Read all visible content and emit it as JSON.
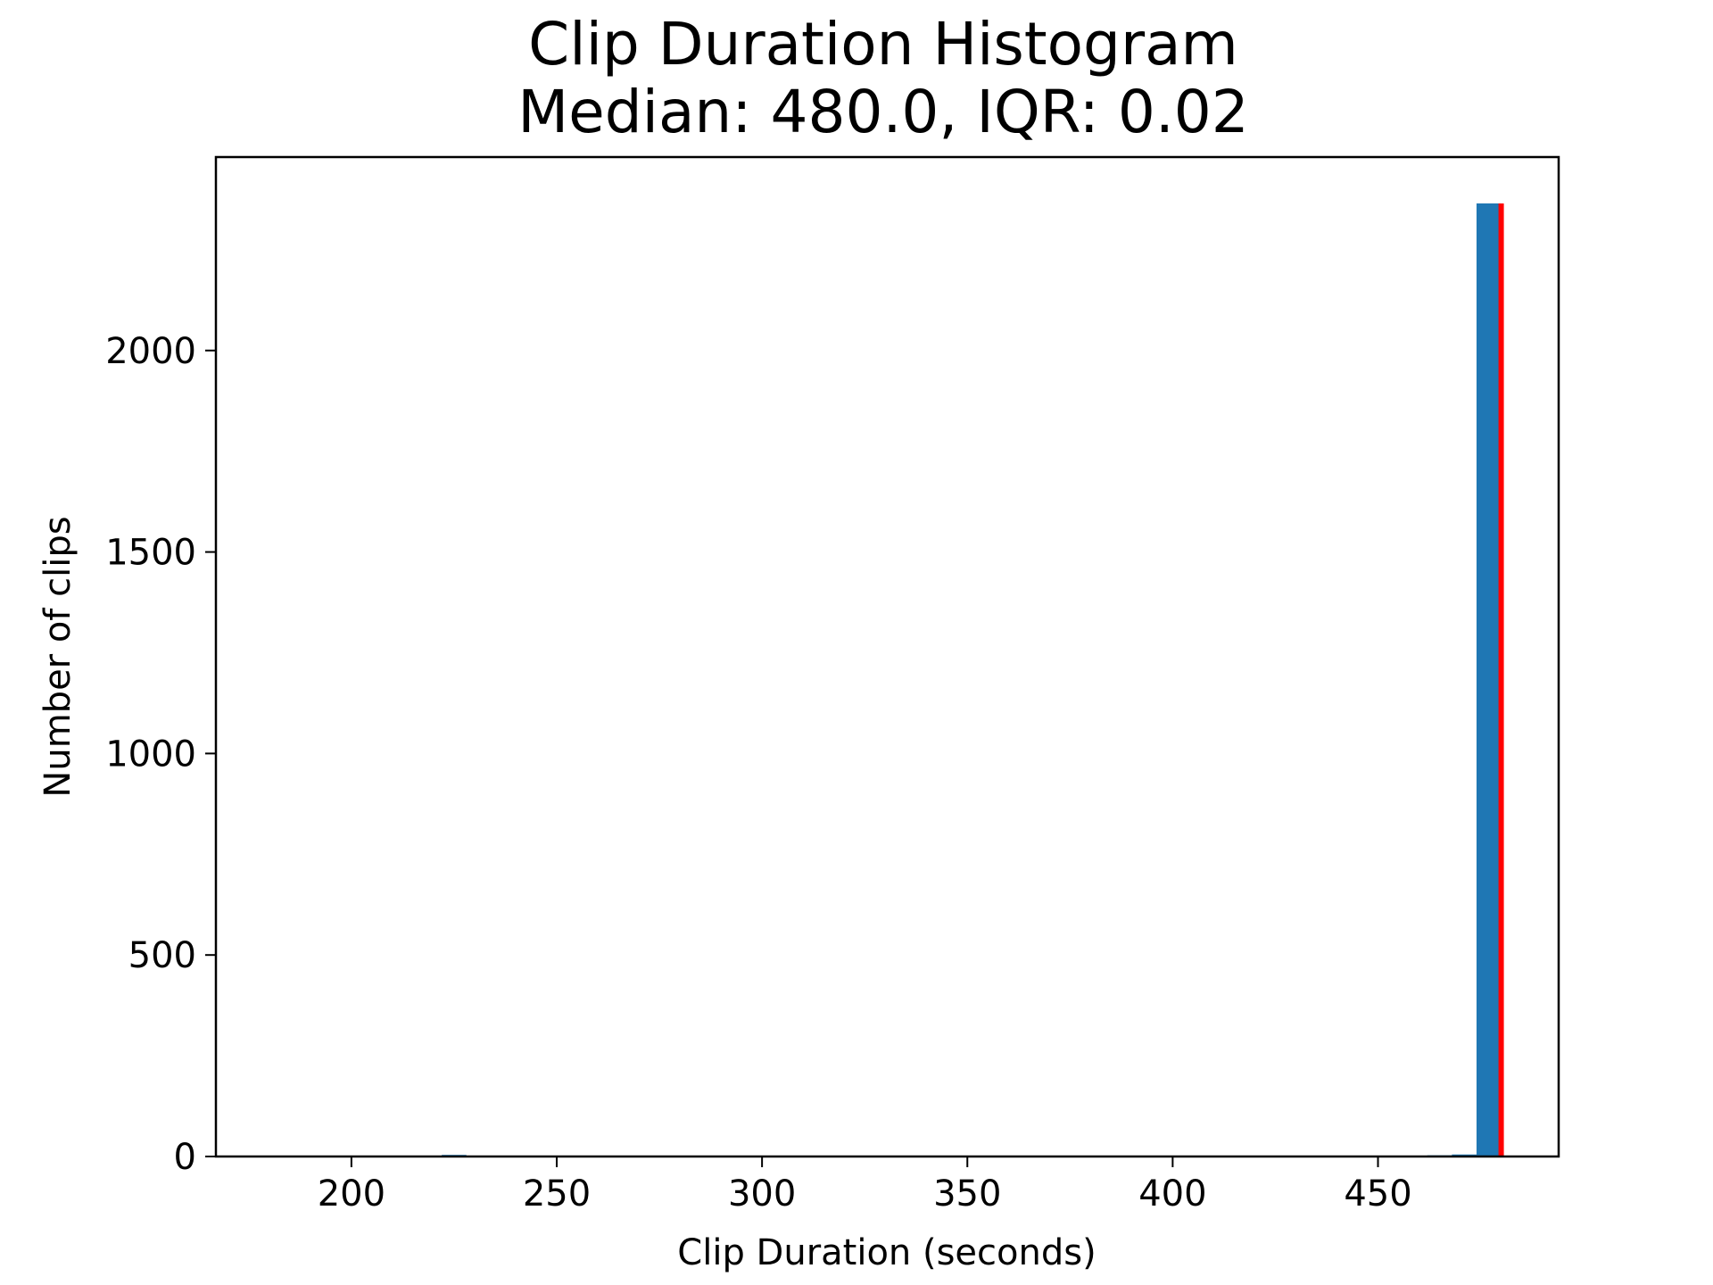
{
  "chart_data": {
    "type": "bar",
    "title_lines": [
      "Clip Duration Histogram",
      "Median: 480.0, IQR: 0.02"
    ],
    "xlabel": "Clip Duration (seconds)",
    "ylabel": "Number of clips",
    "xlim": [
      167,
      494
    ],
    "ylim": [
      0,
      2480
    ],
    "xticks": [
      200,
      250,
      300,
      350,
      400,
      450
    ],
    "yticks": [
      0,
      500,
      1000,
      1500,
      2000
    ],
    "grid": false,
    "bin_width": 6,
    "bars": [
      {
        "x_start": 180,
        "count": 1
      },
      {
        "x_start": 198,
        "count": 2
      },
      {
        "x_start": 204,
        "count": 1
      },
      {
        "x_start": 210,
        "count": 1
      },
      {
        "x_start": 222,
        "count": 4
      },
      {
        "x_start": 228,
        "count": 2
      },
      {
        "x_start": 234,
        "count": 1
      },
      {
        "x_start": 258,
        "count": 2
      },
      {
        "x_start": 282,
        "count": 1
      },
      {
        "x_start": 294,
        "count": 1
      },
      {
        "x_start": 306,
        "count": 1
      },
      {
        "x_start": 318,
        "count": 1
      },
      {
        "x_start": 342,
        "count": 1
      },
      {
        "x_start": 378,
        "count": 1
      },
      {
        "x_start": 384,
        "count": 2
      },
      {
        "x_start": 426,
        "count": 1
      },
      {
        "x_start": 450,
        "count": 2
      },
      {
        "x_start": 462,
        "count": 3
      },
      {
        "x_start": 468,
        "count": 5
      },
      {
        "x_start": 474,
        "count": 2365
      }
    ],
    "median_line": {
      "x": 480.0,
      "count": 2365
    },
    "colors": {
      "bar": "#1f77b4",
      "median_line": "#ff0000"
    }
  }
}
